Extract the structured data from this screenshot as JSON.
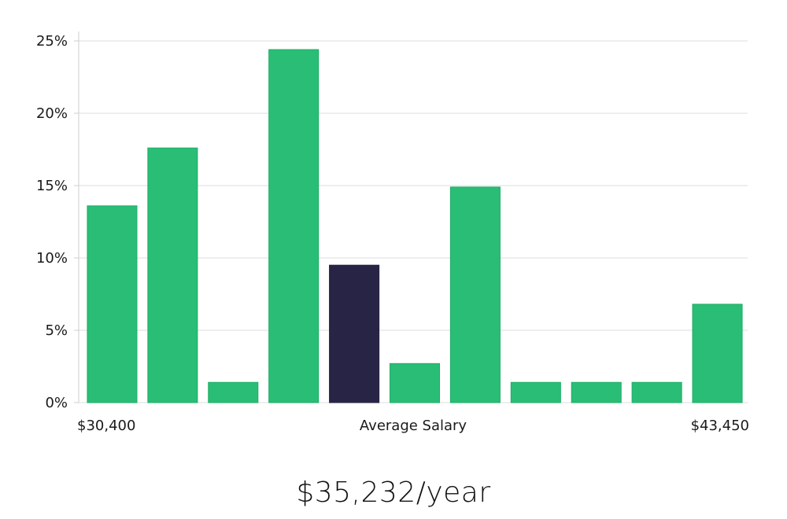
{
  "chart_data": {
    "type": "bar",
    "title": "",
    "xlabel": "Average Salary",
    "ylabel": "",
    "x_range_labels": {
      "min": "$30,400",
      "max": "$43,450"
    },
    "yticks": [
      "0%",
      "5%",
      "10%",
      "15%",
      "20%",
      "25%"
    ],
    "ylim": [
      0,
      25
    ],
    "y_unit": "%",
    "grid": true,
    "values": [
      13.6,
      17.6,
      1.4,
      24.4,
      9.5,
      2.7,
      14.9,
      1.4,
      1.4,
      1.4,
      6.8
    ],
    "highlight_index": 4,
    "colors": {
      "bar": "#2abd76",
      "bar_edge": "#1fae68",
      "highlight": "#272445",
      "grid": "#dcdcdc",
      "axis": "#cfcfcf"
    }
  },
  "summary": {
    "average_salary_text": "$35,232/year"
  }
}
